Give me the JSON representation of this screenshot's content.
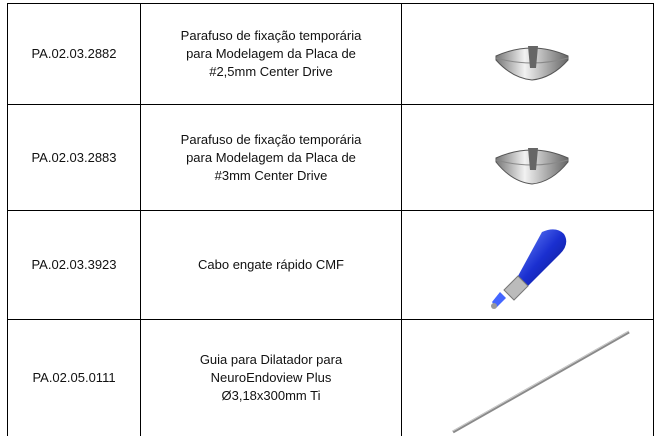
{
  "table": {
    "rows": [
      {
        "code": "PA.02.03.2882",
        "description": [
          "Parafuso de fixação temporária",
          "para Modelagem da Placa de",
          "#2,5mm Center Drive"
        ]
      },
      {
        "code": "PA.02.03.2883",
        "description": [
          "Parafuso de fixação temporária",
          "para Modelagem da Placa de",
          "#3mm Center Drive"
        ]
      },
      {
        "code": "PA.02.03.3923",
        "description": [
          "Cabo engate rápido CMF"
        ]
      },
      {
        "code": "PA.02.05.0111",
        "description": [
          "Guia para Dilatador para",
          "NeuroEndoview Plus",
          "Ø3,18x300mm Ti"
        ]
      }
    ]
  }
}
